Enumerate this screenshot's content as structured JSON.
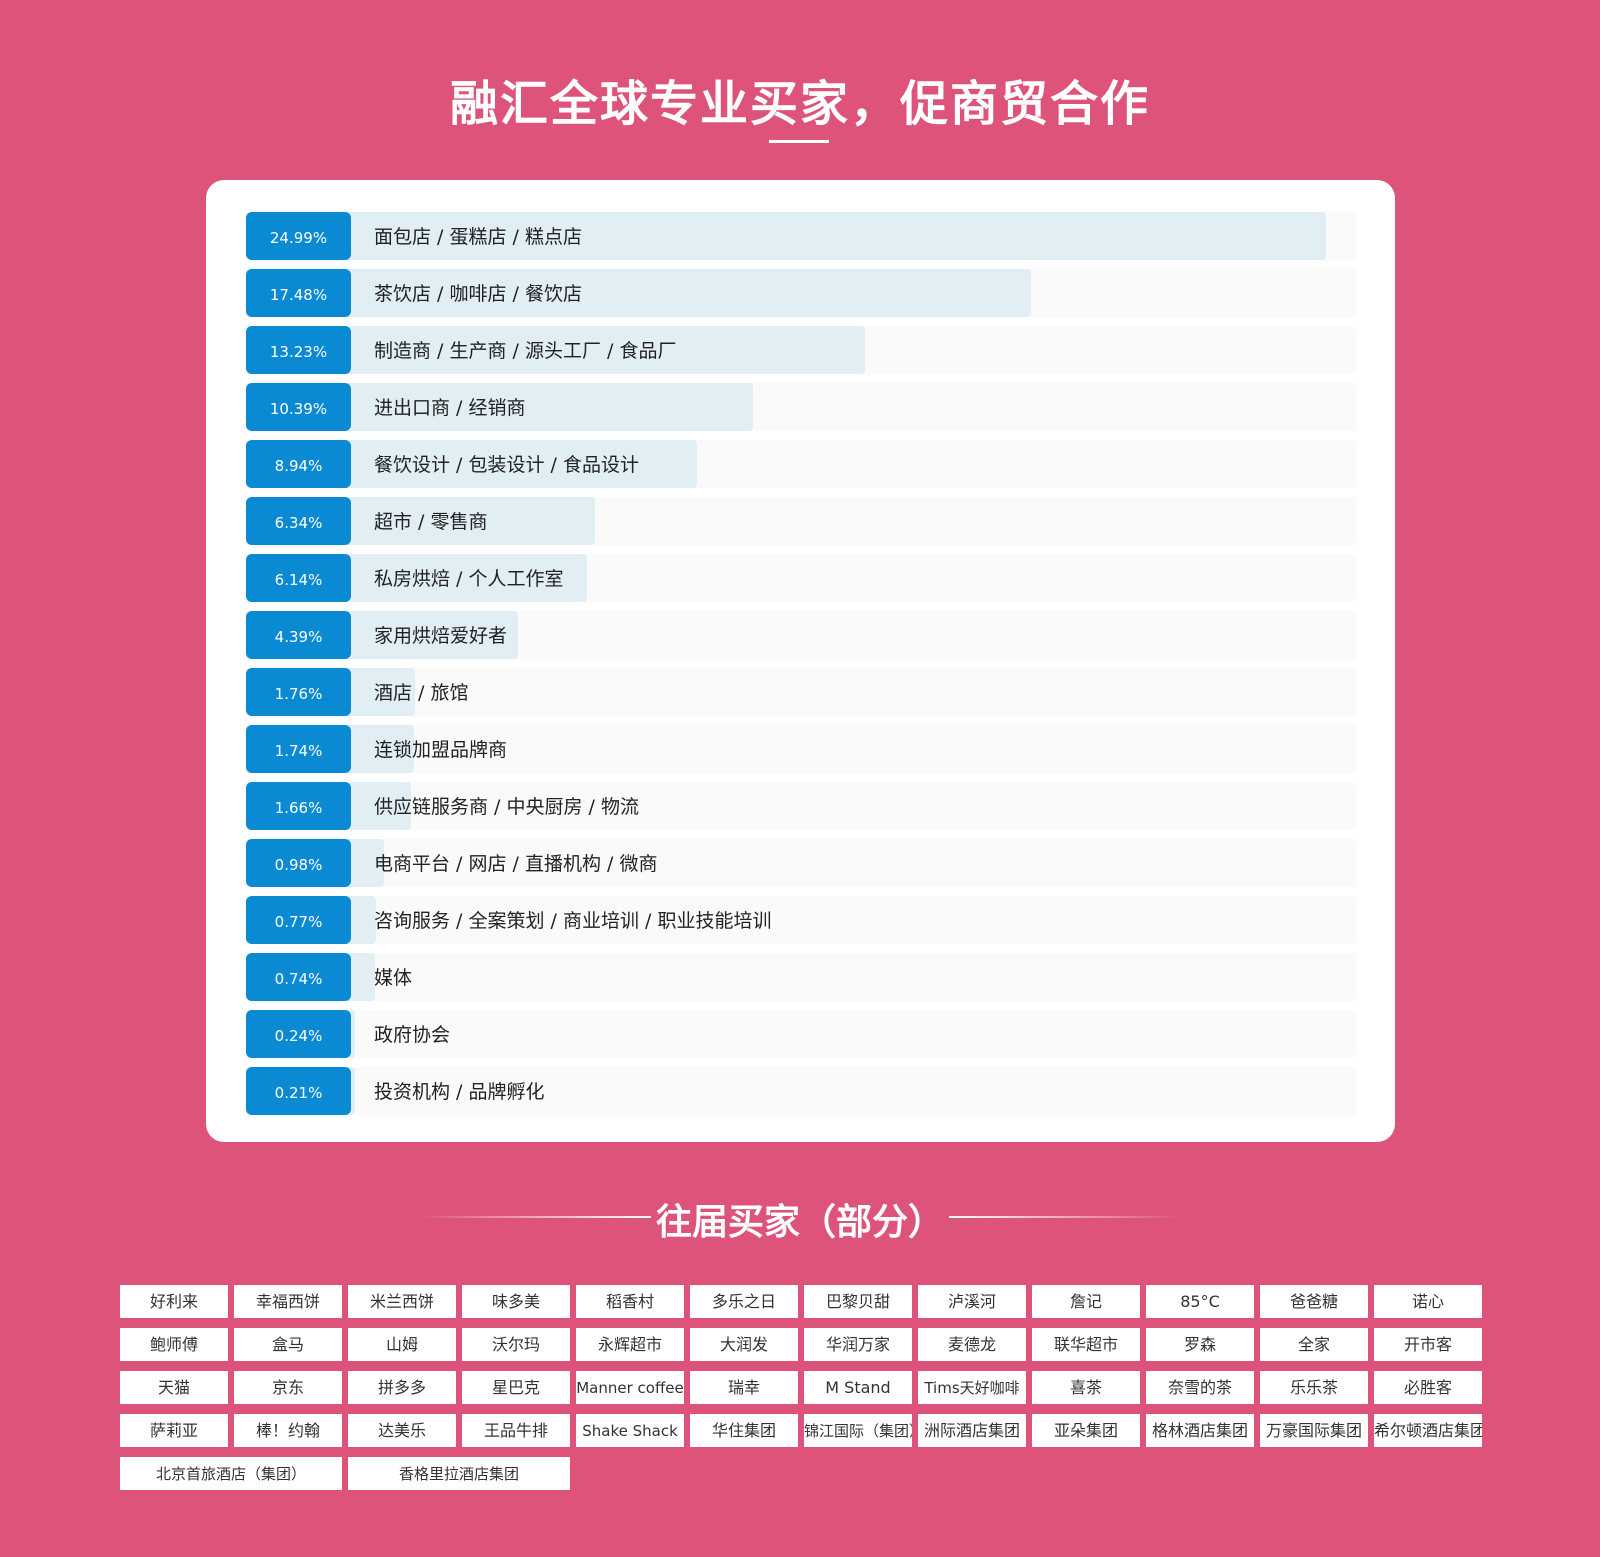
{
  "header": {
    "title": "融汇全球专业买家，促商贸合作"
  },
  "colors": {
    "background": "#dd537a",
    "badge": "#0a8ad3",
    "bar_fill": "#e1eef4",
    "bar_track": "#fafafa"
  },
  "chart_data": {
    "type": "bar",
    "orientation": "horizontal",
    "categories": [
      "面包店 / 蛋糕店 / 糕点店",
      "茶饮店 / 咖啡店 / 餐饮店",
      "制造商 / 生产商 / 源头工厂 / 食品厂",
      "进出口商 / 经销商",
      "餐饮设计 / 包装设计 / 食品设计",
      "超市 / 零售商",
      "私房烘焙 / 个人工作室",
      "家用烘焙爱好者",
      "酒店 / 旅馆",
      "连锁加盟品牌商",
      "供应链服务商 / 中央厨房 / 物流",
      "电商平台 / 网店 / 直播机构 / 微商",
      "咨询服务 / 全案策划 / 商业培训 / 职业技能培训",
      "媒体",
      "政府协会",
      "投资机构 / 品牌孵化"
    ],
    "values": [
      24.99,
      17.48,
      13.23,
      10.39,
      8.94,
      6.34,
      6.14,
      4.39,
      1.76,
      1.74,
      1.66,
      0.98,
      0.77,
      0.74,
      0.24,
      0.21
    ],
    "labels": [
      "24.99%",
      "17.48%",
      "13.23%",
      "10.39%",
      "8.94%",
      "6.34%",
      "6.14%",
      "4.39%",
      "1.76%",
      "1.74%",
      "1.66%",
      "0.98%",
      "0.77%",
      "0.74%",
      "0.24%",
      "0.21%"
    ],
    "xlim": [
      0,
      25.6
    ],
    "legend": "none",
    "grid": false
  },
  "buyers": {
    "title": "往届买家（部分）",
    "tiles": [
      "好利来",
      "幸福西饼",
      "米兰西饼",
      "味多美",
      "稻香村",
      "多乐之日",
      "巴黎贝甜",
      "泸溪河",
      "詹记",
      "85°C",
      "爸爸糖",
      "诺心",
      "鲍师傅",
      "盒马",
      "山姆",
      "沃尔玛",
      "永辉超市",
      "大润发",
      "华润万家",
      "麦德龙",
      "联华超市",
      "罗森",
      "全家",
      "开市客",
      "天猫",
      "京东",
      "拼多多",
      "星巴克",
      "Manner coffee",
      "瑞幸",
      "M Stand",
      "Tims天好咖啡",
      "喜茶",
      "奈雪的茶",
      "乐乐茶",
      "必胜客",
      "萨莉亚",
      "棒！约翰",
      "达美乐",
      "王品牛排",
      "Shake Shack",
      "华住集团",
      "锦江国际（集团）",
      "洲际酒店集团",
      "亚朵集团",
      "格林酒店集团",
      "万豪国际集团",
      "希尔顿酒店集团",
      "北京首旅酒店（集团）",
      "香格里拉酒店集团"
    ]
  }
}
